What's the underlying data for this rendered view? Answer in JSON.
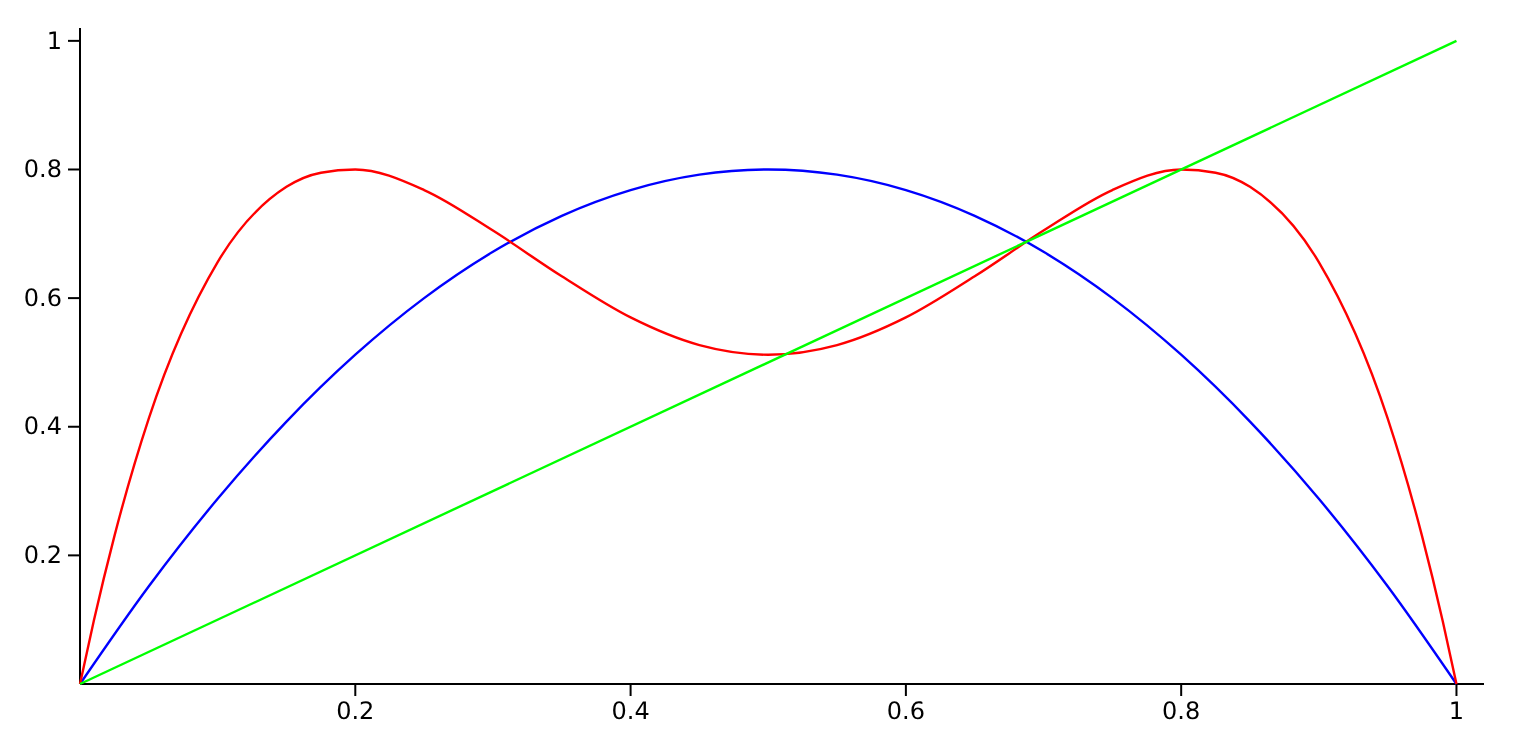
{
  "chart_data": {
    "type": "line",
    "xlim": [
      0,
      1.02
    ],
    "ylim": [
      0,
      1.02
    ],
    "xticks": [
      0.2,
      0.4,
      0.6,
      0.8,
      1
    ],
    "yticks": [
      0.2,
      0.4,
      0.6,
      0.8,
      1
    ],
    "grid": false,
    "marker": "none",
    "line_style": "solid",
    "series": [
      {
        "color": "#0000ff",
        "x": [
          0,
          0.05,
          0.1,
          0.15,
          0.2,
          0.25,
          0.3,
          0.35,
          0.4,
          0.45,
          0.5,
          0.55,
          0.6,
          0.65,
          0.7,
          0.75,
          0.8,
          0.85,
          0.9,
          0.95,
          1
        ],
        "values": [
          0,
          0.152,
          0.288,
          0.408,
          0.512,
          0.6,
          0.672,
          0.728,
          0.768,
          0.792,
          0.8,
          0.792,
          0.768,
          0.728,
          0.672,
          0.6,
          0.512,
          0.408,
          0.288,
          0.152,
          0
        ]
      },
      {
        "color": "#ff0000",
        "x": [
          0,
          0.01,
          0.025,
          0.05,
          0.1,
          0.15,
          0.175,
          0.2,
          0.25,
          0.3,
          0.35,
          0.4,
          0.45,
          0.5,
          0.55,
          0.6,
          0.65,
          0.7,
          0.75,
          0.8,
          0.825,
          0.85,
          0.9,
          0.95,
          0.975,
          0.99,
          1
        ],
        "values": [
          0,
          0.098,
          0.23,
          0.413,
          0.656,
          0.773,
          0.795,
          0.8,
          0.768,
          0.705,
          0.634,
          0.57,
          0.527,
          0.512,
          0.527,
          0.57,
          0.634,
          0.705,
          0.768,
          0.8,
          0.795,
          0.773,
          0.656,
          0.413,
          0.23,
          0.098,
          0
        ]
      },
      {
        "color": "#00ff00",
        "x": [
          0,
          1
        ],
        "values": [
          0,
          1
        ]
      }
    ]
  }
}
